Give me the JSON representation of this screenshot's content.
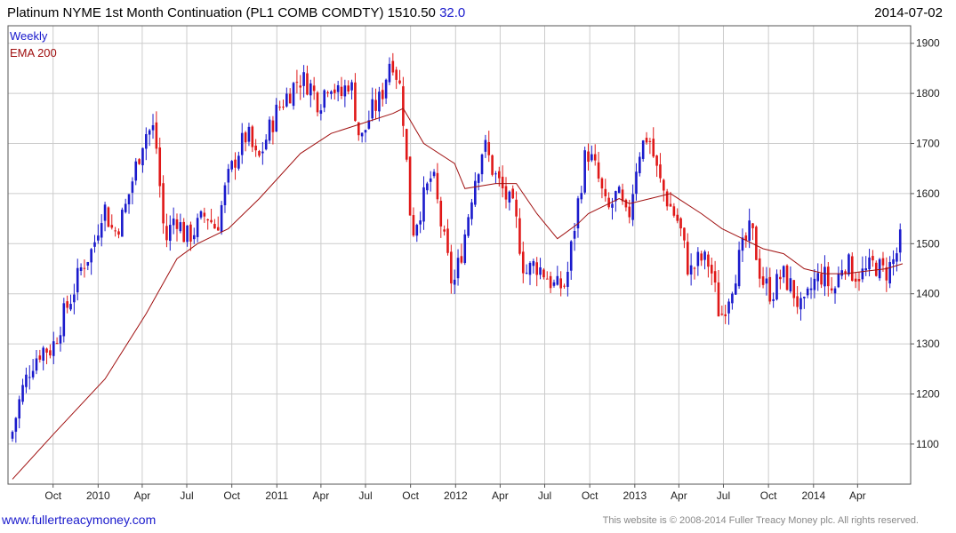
{
  "header": {
    "title": "Platinum NYME 1st Month Continuation (PL1 COMB COMDTY)",
    "last_price": "1510.50",
    "change": "32.0",
    "date": "2014-07-02"
  },
  "footer": {
    "site_link": "www.fullertreacymoney.com",
    "copyright": "This website is © 2008-2014 Fuller Treacy Money plc. All rights reserved."
  },
  "colors": {
    "up": "#1a1acc",
    "down": "#e01818",
    "ema": "#a01010",
    "grid": "#cccccc",
    "frame": "#555555"
  },
  "chart_data": {
    "type": "candlestick",
    "legend": [
      {
        "label": "Weekly",
        "color": "#1a1acc"
      },
      {
        "label": "EMA 200",
        "color": "#a01010"
      }
    ],
    "legend_placement": "top-left",
    "y_axis": {
      "side": "right",
      "ticks": [
        1100,
        1200,
        1300,
        1400,
        1500,
        1600,
        1700,
        1800,
        1900
      ],
      "range": [
        1020,
        1935
      ]
    },
    "x_axis": {
      "start_date": "2009-07-10",
      "end_date": "2014-07-02",
      "ticks": [
        {
          "label": "Oct",
          "date": "2009-10-01"
        },
        {
          "label": "2010",
          "date": "2010-01-01"
        },
        {
          "label": "Apr",
          "date": "2010-04-01"
        },
        {
          "label": "Jul",
          "date": "2010-07-01"
        },
        {
          "label": "Oct",
          "date": "2010-10-01"
        },
        {
          "label": "2011",
          "date": "2011-01-01"
        },
        {
          "label": "Apr",
          "date": "2011-04-01"
        },
        {
          "label": "Jul",
          "date": "2011-07-01"
        },
        {
          "label": "Oct",
          "date": "2011-10-01"
        },
        {
          "label": "2012",
          "date": "2012-01-01"
        },
        {
          "label": "Apr",
          "date": "2012-04-01"
        },
        {
          "label": "Jul",
          "date": "2012-07-01"
        },
        {
          "label": "Oct",
          "date": "2012-10-01"
        },
        {
          "label": "2013",
          "date": "2013-01-01"
        },
        {
          "label": "Apr",
          "date": "2013-04-01"
        },
        {
          "label": "Jul",
          "date": "2013-07-01"
        },
        {
          "label": "Oct",
          "date": "2013-10-01"
        },
        {
          "label": "2014",
          "date": "2014-01-01"
        },
        {
          "label": "Apr",
          "date": "2014-04-01"
        }
      ]
    },
    "price_path": [
      [
        "2009-07-10",
        1110
      ],
      [
        "2009-07-31",
        1200
      ],
      [
        "2009-08-21",
        1260
      ],
      [
        "2009-09-11",
        1290
      ],
      [
        "2009-10-02",
        1290
      ],
      [
        "2009-10-23",
        1350
      ],
      [
        "2009-11-13",
        1400
      ],
      [
        "2009-12-04",
        1460
      ],
      [
        "2009-12-25",
        1490
      ],
      [
        "2010-01-15",
        1580
      ],
      [
        "2010-02-05",
        1520
      ],
      [
        "2010-02-26",
        1560
      ],
      [
        "2010-03-19",
        1640
      ],
      [
        "2010-04-09",
        1720
      ],
      [
        "2010-04-30",
        1730
      ],
      [
        "2010-05-21",
        1500
      ],
      [
        "2010-06-11",
        1560
      ],
      [
        "2010-07-02",
        1510
      ],
      [
        "2010-07-23",
        1530
      ],
      [
        "2010-08-13",
        1560
      ],
      [
        "2010-09-03",
        1530
      ],
      [
        "2010-09-24",
        1620
      ],
      [
        "2010-10-15",
        1680
      ],
      [
        "2010-11-05",
        1720
      ],
      [
        "2010-11-26",
        1660
      ],
      [
        "2010-12-17",
        1720
      ],
      [
        "2011-01-07",
        1770
      ],
      [
        "2011-01-28",
        1800
      ],
      [
        "2011-02-18",
        1830
      ],
      [
        "2011-03-11",
        1820
      ],
      [
        "2011-04-01",
        1780
      ],
      [
        "2011-04-22",
        1830
      ],
      [
        "2011-05-13",
        1790
      ],
      [
        "2011-06-03",
        1830
      ],
      [
        "2011-06-24",
        1700
      ],
      [
        "2011-07-15",
        1760
      ],
      [
        "2011-08-05",
        1790
      ],
      [
        "2011-08-26",
        1880
      ],
      [
        "2011-09-16",
        1800
      ],
      [
        "2011-10-07",
        1520
      ],
      [
        "2011-10-28",
        1580
      ],
      [
        "2011-11-18",
        1640
      ],
      [
        "2011-12-09",
        1520
      ],
      [
        "2011-12-30",
        1410
      ],
      [
        "2012-01-20",
        1500
      ],
      [
        "2012-02-10",
        1620
      ],
      [
        "2012-03-02",
        1700
      ],
      [
        "2012-03-23",
        1640
      ],
      [
        "2012-04-13",
        1600
      ],
      [
        "2012-05-04",
        1560
      ],
      [
        "2012-05-25",
        1440
      ],
      [
        "2012-06-15",
        1460
      ],
      [
        "2012-07-06",
        1440
      ],
      [
        "2012-07-27",
        1410
      ],
      [
        "2012-08-17",
        1420
      ],
      [
        "2012-09-07",
        1560
      ],
      [
        "2012-09-28",
        1690
      ],
      [
        "2012-10-19",
        1640
      ],
      [
        "2012-11-09",
        1560
      ],
      [
        "2012-11-30",
        1600
      ],
      [
        "2012-12-21",
        1540
      ],
      [
        "2013-01-11",
        1680
      ],
      [
        "2013-02-01",
        1720
      ],
      [
        "2013-02-22",
        1630
      ],
      [
        "2013-03-15",
        1580
      ],
      [
        "2013-04-05",
        1540
      ],
      [
        "2013-04-26",
        1440
      ],
      [
        "2013-05-17",
        1470
      ],
      [
        "2013-06-07",
        1460
      ],
      [
        "2013-06-28",
        1350
      ],
      [
        "2013-07-19",
        1410
      ],
      [
        "2013-08-09",
        1480
      ],
      [
        "2013-08-30",
        1530
      ],
      [
        "2013-09-20",
        1430
      ],
      [
        "2013-10-11",
        1400
      ],
      [
        "2013-11-01",
        1440
      ],
      [
        "2013-11-22",
        1410
      ],
      [
        "2013-12-13",
        1360
      ],
      [
        "2014-01-03",
        1420
      ],
      [
        "2014-01-24",
        1440
      ],
      [
        "2014-02-14",
        1400
      ],
      [
        "2014-03-07",
        1470
      ],
      [
        "2014-03-28",
        1440
      ],
      [
        "2014-04-18",
        1440
      ],
      [
        "2014-05-09",
        1460
      ],
      [
        "2014-05-30",
        1440
      ],
      [
        "2014-06-20",
        1470
      ],
      [
        "2014-07-02",
        1510
      ]
    ],
    "ema_path": [
      [
        "2009-07-10",
        1030
      ],
      [
        "2009-10-02",
        1120
      ],
      [
        "2010-01-15",
        1230
      ],
      [
        "2010-04-09",
        1360
      ],
      [
        "2010-06-11",
        1470
      ],
      [
        "2010-07-23",
        1500
      ],
      [
        "2010-09-24",
        1530
      ],
      [
        "2010-11-26",
        1590
      ],
      [
        "2011-02-18",
        1680
      ],
      [
        "2011-04-22",
        1720
      ],
      [
        "2011-06-24",
        1740
      ],
      [
        "2011-08-26",
        1760
      ],
      [
        "2011-09-16",
        1770
      ],
      [
        "2011-10-28",
        1700
      ],
      [
        "2011-12-30",
        1660
      ],
      [
        "2012-01-20",
        1610
      ],
      [
        "2012-03-23",
        1620
      ],
      [
        "2012-05-04",
        1620
      ],
      [
        "2012-06-15",
        1560
      ],
      [
        "2012-07-27",
        1510
      ],
      [
        "2012-09-07",
        1540
      ],
      [
        "2012-09-28",
        1560
      ],
      [
        "2012-11-30",
        1590
      ],
      [
        "2012-12-21",
        1580
      ],
      [
        "2013-02-01",
        1590
      ],
      [
        "2013-03-15",
        1600
      ],
      [
        "2013-05-17",
        1560
      ],
      [
        "2013-06-28",
        1530
      ],
      [
        "2013-08-09",
        1510
      ],
      [
        "2013-09-20",
        1490
      ],
      [
        "2013-11-01",
        1480
      ],
      [
        "2013-12-13",
        1450
      ],
      [
        "2014-01-24",
        1440
      ],
      [
        "2014-03-07",
        1440
      ],
      [
        "2014-04-18",
        1445
      ],
      [
        "2014-05-30",
        1450
      ],
      [
        "2014-07-02",
        1460
      ]
    ]
  }
}
